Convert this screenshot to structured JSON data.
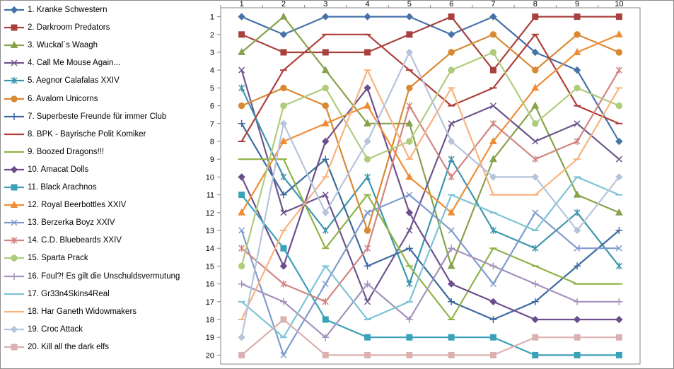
{
  "chart_data": {
    "type": "line",
    "title": "",
    "xlabel": "",
    "ylabel": "",
    "x": [
      1,
      2,
      3,
      4,
      5,
      6,
      7,
      8,
      9,
      10
    ],
    "x_tick_labels": [
      "1",
      "2",
      "3",
      "4",
      "5",
      "6",
      "7",
      "8",
      "9",
      "10"
    ],
    "y_tick_labels": [
      "1",
      "2",
      "3",
      "4",
      "5",
      "6",
      "7",
      "8",
      "9",
      "10",
      "11",
      "12",
      "13",
      "14",
      "15",
      "16",
      "17",
      "18",
      "19",
      "20"
    ],
    "ylim": [
      1,
      20
    ],
    "y_inverted": true,
    "grid": false,
    "legend_position": "left",
    "series": [
      {
        "name": "1. Kranke Schwestern",
        "color": "#4672a8",
        "marker": "diamond",
        "values": [
          1,
          2,
          1,
          1,
          1,
          2,
          1,
          3,
          4,
          8
        ]
      },
      {
        "name": "2. Darkroom Predators",
        "color": "#a8413e",
        "marker": "square",
        "values": [
          2,
          3,
          3,
          3,
          2,
          1,
          4,
          1,
          1,
          1
        ]
      },
      {
        "name": "3. Wuckal´s Waagh",
        "color": "#87a24a",
        "marker": "triangle",
        "values": [
          3,
          1,
          4,
          7,
          7,
          15,
          9,
          6,
          11,
          12
        ]
      },
      {
        "name": "4. Call Me Mouse Again...",
        "color": "#6e548d",
        "marker": "x",
        "values": [
          4,
          12,
          11,
          17,
          13,
          7,
          6,
          8,
          7,
          9
        ]
      },
      {
        "name": "5. Aegnor Calafalas XXIV",
        "color": "#3d96ab",
        "marker": "star",
        "values": [
          5,
          10,
          13,
          10,
          16,
          9,
          13,
          14,
          12,
          15
        ]
      },
      {
        "name": "6. Avalorn Unicorns",
        "color": "#d88933",
        "marker": "circle",
        "values": [
          6,
          5,
          6,
          13,
          5,
          3,
          2,
          4,
          2,
          3
        ]
      },
      {
        "name": "7. Superbeste Freunde für immer Club",
        "color": "#3d6a9e",
        "marker": "plus",
        "values": [
          7,
          11,
          9,
          15,
          14,
          17,
          18,
          17,
          15,
          13
        ]
      },
      {
        "name": "8. BPK - Bayrische Polit Komiker",
        "color": "#ae3f3b",
        "marker": "dash",
        "values": [
          8,
          4,
          2,
          2,
          4,
          6,
          5,
          2,
          6,
          7
        ]
      },
      {
        "name": "9. Boozed Dragons!!!",
        "color": "#8fb347",
        "marker": "dash",
        "values": [
          9,
          9,
          14,
          11,
          15,
          18,
          14,
          15,
          16,
          16
        ]
      },
      {
        "name": "10. Amacat Dolls",
        "color": "#6d4e8c",
        "marker": "diamond",
        "values": [
          10,
          15,
          8,
          5,
          12,
          16,
          17,
          18,
          18,
          18
        ]
      },
      {
        "name": "11. Black Arachnos",
        "color": "#3aa1b8",
        "marker": "square",
        "values": [
          11,
          14,
          18,
          19,
          19,
          19,
          19,
          20,
          20,
          20
        ]
      },
      {
        "name": "12. Royal Beerbottles XXIV",
        "color": "#f08c35",
        "marker": "triangle",
        "values": [
          12,
          8,
          7,
          6,
          10,
          12,
          8,
          5,
          3,
          2
        ]
      },
      {
        "name": "13. Berzerka Boyz XXIV",
        "color": "#7f9bcd",
        "marker": "x",
        "values": [
          13,
          20,
          16,
          12,
          11,
          13,
          16,
          12,
          14,
          14
        ]
      },
      {
        "name": "14. C.D. Bluebeards XXIV",
        "color": "#d28482",
        "marker": "star",
        "values": [
          14,
          16,
          17,
          14,
          6,
          10,
          7,
          9,
          8,
          4
        ]
      },
      {
        "name": "15. Sparta Prack",
        "color": "#afcc7c",
        "marker": "circle",
        "values": [
          15,
          6,
          5,
          9,
          8,
          4,
          3,
          7,
          5,
          6
        ]
      },
      {
        "name": "16. Foul?! Es gilt die Unschuldsvermutung",
        "color": "#a492bb",
        "marker": "plus",
        "values": [
          16,
          17,
          19,
          16,
          18,
          14,
          15,
          16,
          17,
          17
        ]
      },
      {
        "name": "17. Gr33n4Skins4Real",
        "color": "#7ec3d6",
        "marker": "dash",
        "values": [
          17,
          19,
          15,
          18,
          17,
          11,
          12,
          13,
          10,
          11
        ]
      },
      {
        "name": "18. Har Ganeth Widowmakers",
        "color": "#f8b27e",
        "marker": "dash",
        "values": [
          18,
          13,
          10,
          4,
          9,
          5,
          11,
          11,
          9,
          5
        ]
      },
      {
        "name": "19. Croc Attack",
        "color": "#b6c4db",
        "marker": "diamond",
        "values": [
          19,
          7,
          12,
          8,
          3,
          8,
          10,
          10,
          13,
          10
        ]
      },
      {
        "name": "20. Kill all the dark elfs",
        "color": "#dbb1b0",
        "marker": "square",
        "values": [
          20,
          18,
          20,
          20,
          20,
          20,
          20,
          19,
          19,
          19
        ]
      }
    ]
  }
}
